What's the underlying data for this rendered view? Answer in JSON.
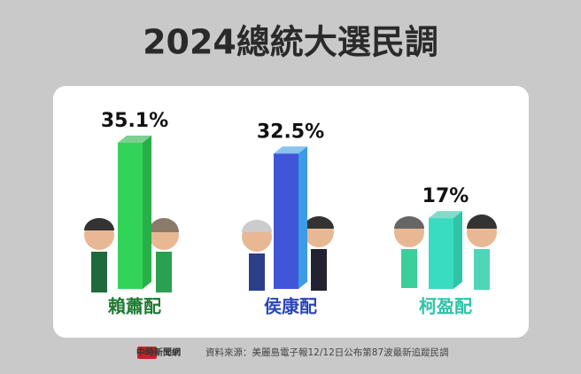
{
  "chart_data": {
    "type": "bar3d",
    "title": "2024總統大選民調",
    "categories": [
      "賴蕭配",
      "侯康配",
      "柯盈配"
    ],
    "values": [
      35.1,
      32.5,
      17
    ],
    "value_labels": [
      "35.1%",
      "32.5%",
      "17%"
    ],
    "colors": [
      "#33d35a",
      "#3f56d8",
      "#39dcc0"
    ],
    "side_colors": [
      "#27b048",
      "#3b9be6",
      "#2fc3a8"
    ],
    "label_colors": [
      "#1e7a32",
      "#2c46b8",
      "#2fc3a8"
    ],
    "logo": "中時新聞網",
    "source": "資料來源：美麗島電子報12/12日公布第87波最新追蹤民調"
  }
}
